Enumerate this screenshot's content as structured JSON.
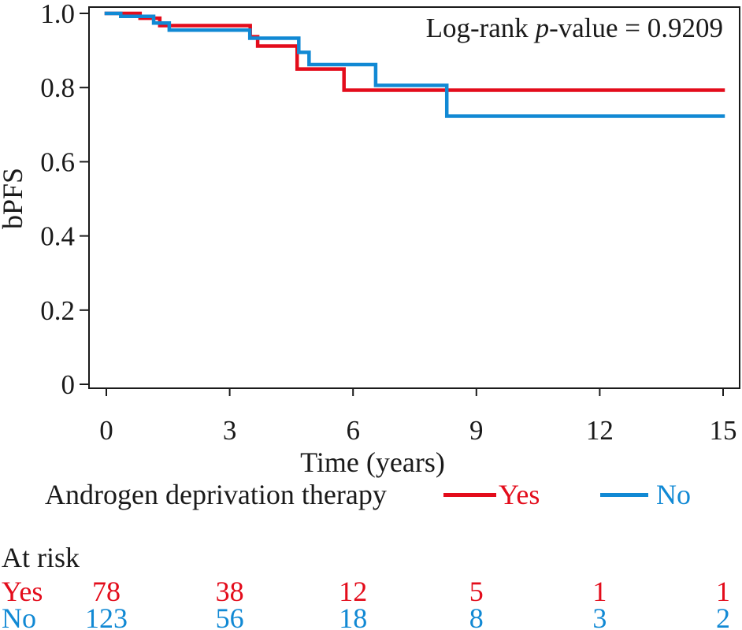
{
  "annotation": {
    "prefix": "Log-rank ",
    "italic": "p",
    "suffix": "-value = 0.9209"
  },
  "legend": {
    "title": "Androgen deprivation therapy",
    "items": [
      {
        "label": "Yes",
        "color": "#e30c1b"
      },
      {
        "label": "No",
        "color": "#1189d4"
      }
    ]
  },
  "chart_data": {
    "type": "line",
    "subtype": "kaplan-meier-step",
    "title": "",
    "xlabel": "Time (years)",
    "ylabel": "bPFS",
    "xlim": [
      0,
      15
    ],
    "ylim": [
      0,
      1.0
    ],
    "grid": false,
    "legend_position": "bottom",
    "annotation": "Log-rank p-value = 0.9209",
    "xticks": [
      0,
      3,
      6,
      9,
      12,
      15
    ],
    "yticks": [
      {
        "label": "1.0",
        "value": 1.0
      },
      {
        "label": "0.8",
        "value": 0.8
      },
      {
        "label": "0.6",
        "value": 0.6
      },
      {
        "label": "0.4",
        "value": 0.4
      },
      {
        "label": "0.2",
        "value": 0.2
      },
      {
        "label": "0",
        "value": 0.0
      }
    ],
    "series": [
      {
        "name": "Yes",
        "color": "#e30c1b",
        "points": [
          [
            0,
            1.0
          ],
          [
            0.82,
            0.987
          ],
          [
            1.3,
            0.967
          ],
          [
            3.5,
            0.937
          ],
          [
            3.68,
            0.912
          ],
          [
            4.64,
            0.85
          ],
          [
            5.78,
            0.793
          ],
          [
            15,
            0.793
          ]
        ]
      },
      {
        "name": "No",
        "color": "#1189d4",
        "points": [
          [
            0,
            1.0
          ],
          [
            0.35,
            0.992
          ],
          [
            1.15,
            0.974
          ],
          [
            1.53,
            0.955
          ],
          [
            3.49,
            0.933
          ],
          [
            4.68,
            0.895
          ],
          [
            4.93,
            0.862
          ],
          [
            6.55,
            0.806
          ],
          [
            8.28,
            0.723
          ],
          [
            15,
            0.723
          ]
        ]
      }
    ],
    "at_risk": {
      "header": "At risk",
      "times": [
        0,
        3,
        6,
        9,
        12,
        15
      ],
      "rows": [
        {
          "label": "Yes",
          "color": "#e30c1b",
          "counts": [
            78,
            38,
            12,
            5,
            1,
            1
          ]
        },
        {
          "label": "No",
          "color": "#1189d4",
          "counts": [
            123,
            56,
            18,
            8,
            3,
            2
          ]
        }
      ]
    }
  }
}
